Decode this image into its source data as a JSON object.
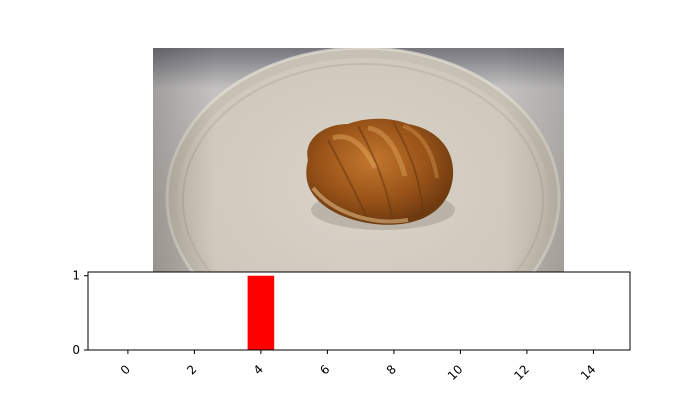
{
  "image": {
    "subject": "bread-roll-on-plate-photo"
  },
  "chart_data": {
    "type": "bar",
    "title": "",
    "xlabel": "",
    "ylabel": "",
    "x": [
      0,
      1,
      2,
      3,
      4,
      5,
      6,
      7,
      8,
      9,
      10,
      11,
      12,
      13,
      14
    ],
    "values": [
      0,
      0,
      0,
      0,
      1,
      0.005,
      0,
      0,
      0,
      0,
      0,
      0,
      0,
      0,
      0
    ],
    "bar_colors": [
      "#0000ff",
      "#0000ff",
      "#0000ff",
      "#0000ff",
      "#ff0000",
      "#0000ff",
      "#0000ff",
      "#0000ff",
      "#0000ff",
      "#0000ff",
      "#0000ff",
      "#0000ff",
      "#0000ff",
      "#0000ff",
      "#0000ff"
    ],
    "xlim": [
      -1.2,
      15.1
    ],
    "ylim": [
      0,
      1.05
    ],
    "xticks": [
      "0",
      "2",
      "4",
      "6",
      "8",
      "10",
      "12",
      "14"
    ],
    "yticks": [
      "0",
      "1"
    ],
    "grid": false,
    "legend": "none"
  }
}
